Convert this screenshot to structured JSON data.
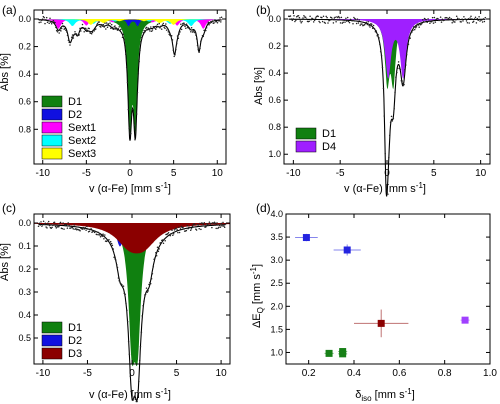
{
  "chart_data": [
    {
      "panel": "(a)",
      "type": "area",
      "xlabel": "v (α-Fe) [mm s",
      "xlabel_sup": "-1",
      "xlabel_end": "]",
      "ylabel": "Abs [%]",
      "xlim": [
        -11,
        11
      ],
      "ylim": [
        0,
        1.03
      ],
      "y_inverted": true,
      "xticks": [
        -10,
        -5,
        0,
        5,
        10
      ],
      "yticks": [
        0.0,
        0.2,
        0.4,
        0.6,
        0.8
      ],
      "ytick_labels": [
        "0.0",
        "0.2",
        "0.4",
        "0.6",
        "0.8"
      ],
      "legend_position": "bottom-left",
      "series": [
        {
          "name": "D1",
          "color": "#108010",
          "type": "doublet",
          "center": 0.3,
          "split": 0.62,
          "width": 0.27,
          "depth": 0.72
        },
        {
          "name": "D2",
          "color": "#1010e0",
          "type": "doublet",
          "center": 0.35,
          "split": 1.05,
          "width": 0.25,
          "depth": 0.05
        },
        {
          "name": "Sext1",
          "color": "#ff00ff",
          "type": "sextet",
          "center": 0.3,
          "lines": [
            -8.2,
            -5.0,
            -2.0,
            2.6,
            5.4,
            8.4
          ],
          "width": 0.35,
          "depth": 0.07
        },
        {
          "name": "Sext2",
          "color": "#00ffff",
          "type": "sextet",
          "center": 0.3,
          "lines": [
            -6.6,
            -4.2,
            -1.7,
            2.2,
            4.6,
            7.0
          ],
          "width": 0.4,
          "depth": 0.05
        },
        {
          "name": "Sext3",
          "color": "#ffff00",
          "type": "sextet",
          "center": 0.3,
          "lines": [
            -4.5,
            -3.0,
            -1.2,
            1.6,
            3.4,
            5.0
          ],
          "width": 0.4,
          "depth": 0.04
        }
      ],
      "envelope_extra": [
        [
          -6.9,
          0.12,
          0.3
        ],
        [
          -6.0,
          0.08,
          0.3
        ],
        [
          5.1,
          0.17,
          0.25
        ],
        [
          7.9,
          0.2,
          0.25
        ]
      ]
    },
    {
      "panel": "(b)",
      "type": "area",
      "xlabel": "v (α-Fe) [mm s",
      "xlabel_sup": "-1",
      "xlabel_end": "]",
      "ylabel": "Abs [%]",
      "xlim": [
        -11,
        11
      ],
      "ylim": [
        0,
        1.05
      ],
      "y_inverted": true,
      "xticks": [
        -10,
        -5,
        0,
        5,
        10
      ],
      "yticks": [
        0.0,
        0.2,
        0.4,
        0.6,
        0.8,
        1.0
      ],
      "ytick_labels": [
        "0.0",
        "0.2",
        "0.4",
        "0.6",
        "0.8",
        "1.0"
      ],
      "legend_position": "bottom-left",
      "series": [
        {
          "name": "D1",
          "color": "#108010",
          "type": "doublet",
          "center": 0.35,
          "split": 0.65,
          "width": 0.3,
          "depth": 0.44
        },
        {
          "name": "D4",
          "color": "#9f1fff",
          "type": "doublet",
          "center": 0.92,
          "split": 1.6,
          "width": 0.38,
          "depth": 0.42
        }
      ],
      "envelope_extra": [
        [
          -0.1,
          0.5,
          0.18
        ]
      ]
    },
    {
      "panel": "(c)",
      "type": "area",
      "xlabel": "v (α-Fe) [mm s",
      "xlabel_sup": "-1",
      "xlabel_end": "]",
      "ylabel": "Abs [%]",
      "xlim": [
        -11,
        11
      ],
      "ylim": [
        0,
        0.6
      ],
      "y_inverted": true,
      "xticks": [
        -10,
        -5,
        0,
        5,
        10
      ],
      "yticks": [
        0.0,
        0.1,
        0.2,
        0.3,
        0.4,
        0.5
      ],
      "ytick_labels": [
        "0.0",
        "0.1",
        "0.2",
        "0.3",
        "0.4",
        "0.5"
      ],
      "legend_position": "bottom-left",
      "series": [
        {
          "name": "D1",
          "color": "#108010",
          "type": "doublet",
          "center": 0.3,
          "split": 0.65,
          "width": 0.45,
          "depth": 0.46
        },
        {
          "name": "D2",
          "color": "#1010e0",
          "type": "doublet",
          "center": 0.3,
          "split": 3.3,
          "width": 0.5,
          "depth": 0.1
        },
        {
          "name": "D3",
          "color": "#8b0000",
          "type": "doublet",
          "center": 0.52,
          "split": 1.65,
          "width": 1.8,
          "depth": 0.08
        }
      ],
      "envelope_extra": []
    },
    {
      "panel": "(d)",
      "type": "scatter",
      "xlabel": "δ",
      "xlabel_sub": "iso",
      "xlabel_unit": " [mm s",
      "xlabel_sup": "-1",
      "xlabel_end": "]",
      "ylabel": "ΔE",
      "ylabel_sub": "Q",
      "ylabel_unit": " [mm s",
      "ylabel_sup": "-1",
      "ylabel_end": "]",
      "xlim": [
        0.1,
        1.0
      ],
      "ylim": [
        0.75,
        4.0
      ],
      "xticks": [
        0.2,
        0.4,
        0.6,
        0.8,
        1.0
      ],
      "xtick_labels": [
        "0.2",
        "0.4",
        "0.6",
        "0.8",
        "1.0"
      ],
      "yticks": [
        1.0,
        1.5,
        2.0,
        2.5,
        3.0,
        3.5,
        4.0
      ],
      "ytick_labels": [
        "1.0",
        "1.5",
        "2.0",
        "2.5",
        "3.0",
        "3.5",
        "4.0"
      ],
      "points": [
        {
          "x": 0.19,
          "y": 3.49,
          "xerr": 0.05,
          "yerr": 0.08,
          "color": "#2424e0"
        },
        {
          "x": 0.37,
          "y": 3.22,
          "xerr": 0.06,
          "yerr": 0.12,
          "color": "#2424e0"
        },
        {
          "x": 0.29,
          "y": 0.98,
          "xerr": 0.02,
          "yerr": 0.02,
          "color": "#178017"
        },
        {
          "x": 0.35,
          "y": 1.02,
          "xerr": 0.02,
          "yerr": 0.03,
          "color": "#178017"
        },
        {
          "x": 0.35,
          "y": 0.97,
          "xerr": 0.02,
          "yerr": 0.03,
          "color": "#178017"
        },
        {
          "x": 0.52,
          "y": 1.63,
          "xerr": 0.12,
          "yerr": 0.3,
          "color": "#8b0000"
        },
        {
          "x": 0.89,
          "y": 1.7,
          "xerr": 0.02,
          "yerr": 0.03,
          "color": "#a040ff"
        }
      ]
    }
  ]
}
